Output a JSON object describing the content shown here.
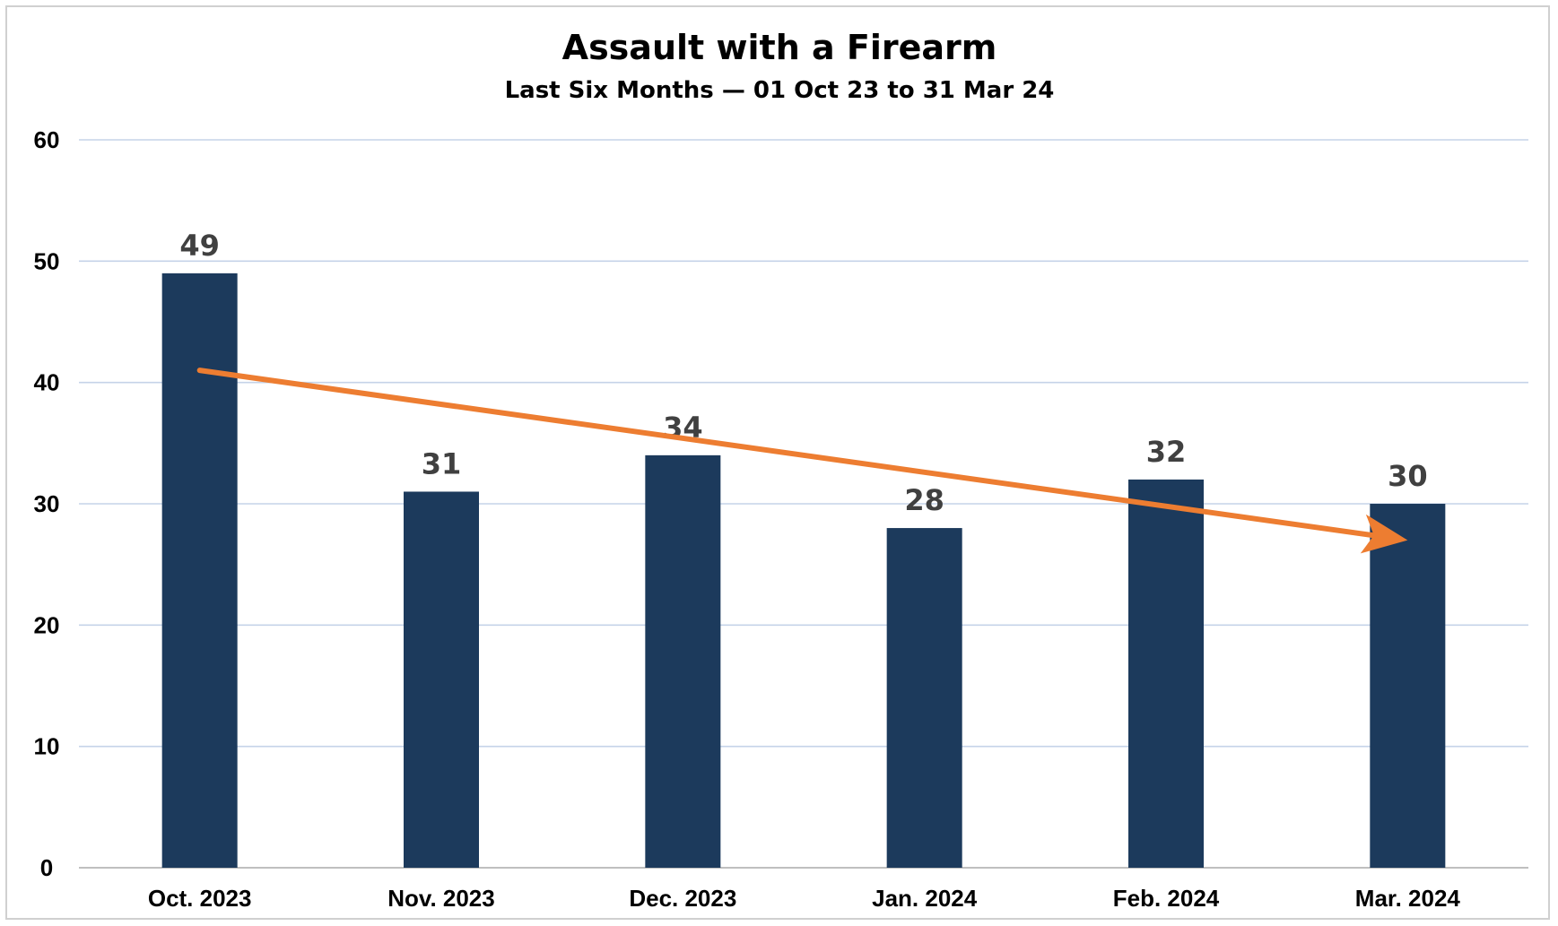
{
  "chart_data": {
    "type": "bar",
    "title": "Assault with a Firearm",
    "subtitle": "Last Six Months — 01 Oct 23 to 31 Mar 24",
    "categories": [
      "Oct. 2023",
      "Nov. 2023",
      "Dec. 2023",
      "Jan. 2024",
      "Feb. 2024",
      "Mar. 2024"
    ],
    "values": [
      49,
      31,
      34,
      28,
      32,
      30
    ],
    "data_labels": [
      "49",
      "31",
      "34",
      "28",
      "32",
      "30"
    ],
    "ylim": [
      0,
      60
    ],
    "yticks": [
      "0",
      "10",
      "20",
      "30",
      "40",
      "50",
      "60"
    ],
    "grid": true,
    "legend": "none",
    "bar_color": "#1c3a5c",
    "trend_arrow": {
      "color": "#ed7d31",
      "start": [
        0,
        41
      ],
      "end": [
        5,
        27
      ]
    }
  }
}
